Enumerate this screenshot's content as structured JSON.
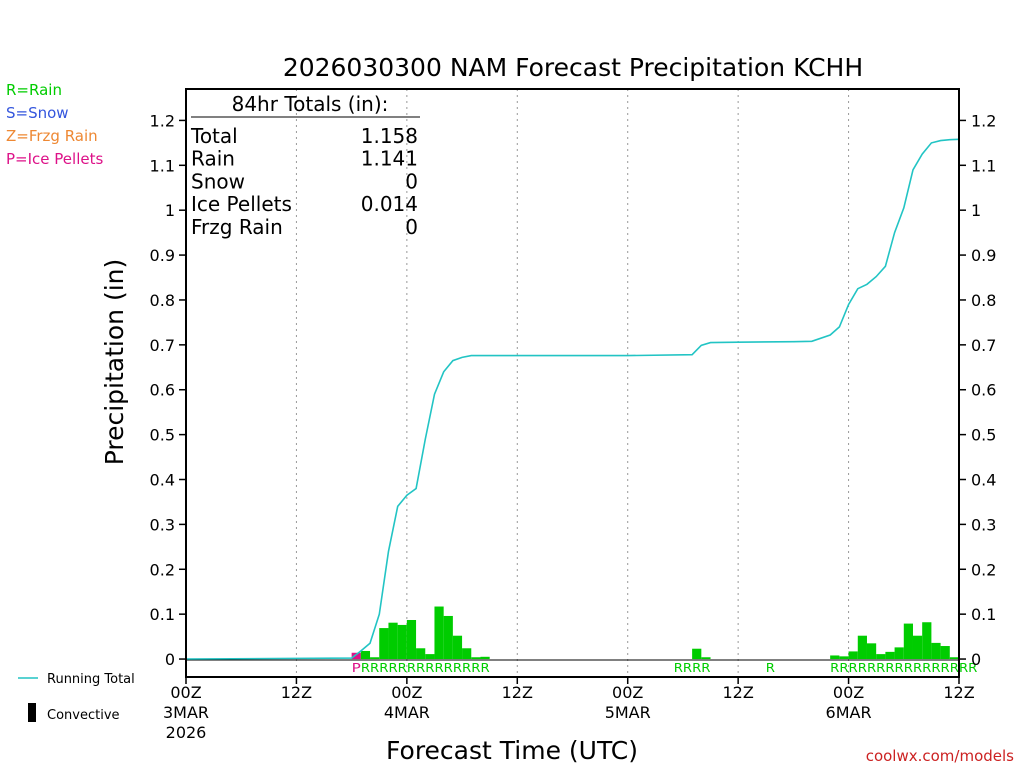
{
  "chart_data": {
    "type": "bar",
    "title": "2026030300 NAM Forecast Precipitation KCHH",
    "xlabel": "Forecast Time (UTC)",
    "ylabel": "Precipitation (in)",
    "ylim": [
      -0.04,
      1.27
    ],
    "yticks": [
      0,
      0.1,
      0.2,
      0.3,
      0.4,
      0.5,
      0.6,
      0.7,
      0.8,
      0.9,
      1,
      1.1,
      1.2
    ],
    "ytick_labels": [
      "0",
      "0.1",
      "0.2",
      "0.3",
      "0.4",
      "0.5",
      "0.6",
      "0.7",
      "0.8",
      "0.9",
      "1",
      "1.1",
      "1.2"
    ],
    "xlim_hours": [
      0,
      84
    ],
    "xticks": [
      {
        "hour": 0,
        "lines": [
          "00Z",
          "3MAR",
          "2026"
        ]
      },
      {
        "hour": 12,
        "lines": [
          "12Z"
        ]
      },
      {
        "hour": 24,
        "lines": [
          "00Z",
          "4MAR"
        ]
      },
      {
        "hour": 36,
        "lines": [
          "12Z"
        ]
      },
      {
        "hour": 48,
        "lines": [
          "00Z",
          "5MAR"
        ]
      },
      {
        "hour": 60,
        "lines": [
          "12Z"
        ]
      },
      {
        "hour": 72,
        "lines": [
          "00Z",
          "6MAR"
        ]
      },
      {
        "hour": 84,
        "lines": [
          "12Z"
        ]
      }
    ],
    "legend_types": [
      {
        "label": "R=Rain",
        "color": "#00cc00"
      },
      {
        "label": "S=Snow",
        "color": "#3355dd"
      },
      {
        "label": "Z=Frzg Rain",
        "color": "#ee8833"
      },
      {
        "label": "P=Ice Pellets",
        "color": "#dd1188"
      }
    ],
    "legend_series": [
      {
        "label": "Running Total",
        "color": "#22c4c4"
      },
      {
        "label": "Convective",
        "color": "#000000"
      }
    ],
    "totals": {
      "header": "84hr Totals (in):",
      "rows": [
        {
          "label": "Total",
          "value": "1.158"
        },
        {
          "label": "Rain",
          "value": "1.141"
        },
        {
          "label": "Snow",
          "value": "0"
        },
        {
          "label": "Ice Pellets",
          "value": "0.014"
        },
        {
          "label": "Frzg Rain",
          "value": "0"
        }
      ]
    },
    "bar_width_hours": 1,
    "bars": [
      {
        "hour": 18.5,
        "value": 0.014,
        "color": "#dd1188"
      },
      {
        "hour": 19.5,
        "value": 0.018,
        "color": "#00cc00"
      },
      {
        "hour": 20.5,
        "value": 0.004,
        "color": "#00cc00"
      },
      {
        "hour": 21.5,
        "value": 0.069,
        "color": "#00cc00"
      },
      {
        "hour": 22.5,
        "value": 0.081,
        "color": "#00cc00"
      },
      {
        "hour": 23.5,
        "value": 0.076,
        "color": "#00cc00"
      },
      {
        "hour": 24.5,
        "value": 0.087,
        "color": "#00cc00"
      },
      {
        "hour": 25.5,
        "value": 0.024,
        "color": "#00cc00"
      },
      {
        "hour": 26.5,
        "value": 0.011,
        "color": "#00cc00"
      },
      {
        "hour": 27.5,
        "value": 0.117,
        "color": "#00cc00"
      },
      {
        "hour": 28.5,
        "value": 0.096,
        "color": "#00cc00"
      },
      {
        "hour": 29.5,
        "value": 0.052,
        "color": "#00cc00"
      },
      {
        "hour": 30.5,
        "value": 0.024,
        "color": "#00cc00"
      },
      {
        "hour": 31.5,
        "value": 0.004,
        "color": "#00cc00"
      },
      {
        "hour": 32.5,
        "value": 0.005,
        "color": "#00cc00"
      },
      {
        "hour": 55.5,
        "value": 0.023,
        "color": "#00cc00"
      },
      {
        "hour": 56.5,
        "value": 0.004,
        "color": "#00cc00"
      },
      {
        "hour": 70.5,
        "value": 0.008,
        "color": "#00cc00"
      },
      {
        "hour": 71.5,
        "value": 0.006,
        "color": "#00cc00"
      },
      {
        "hour": 72.5,
        "value": 0.017,
        "color": "#00cc00"
      },
      {
        "hour": 73.5,
        "value": 0.052,
        "color": "#00cc00"
      },
      {
        "hour": 74.5,
        "value": 0.035,
        "color": "#00cc00"
      },
      {
        "hour": 75.5,
        "value": 0.011,
        "color": "#00cc00"
      },
      {
        "hour": 76.5,
        "value": 0.016,
        "color": "#00cc00"
      },
      {
        "hour": 77.5,
        "value": 0.026,
        "color": "#00cc00"
      },
      {
        "hour": 78.5,
        "value": 0.079,
        "color": "#00cc00"
      },
      {
        "hour": 79.5,
        "value": 0.052,
        "color": "#00cc00"
      },
      {
        "hour": 80.5,
        "value": 0.082,
        "color": "#00cc00"
      },
      {
        "hour": 81.5,
        "value": 0.036,
        "color": "#00cc00"
      },
      {
        "hour": 82.5,
        "value": 0.029,
        "color": "#00cc00"
      },
      {
        "hour": 83.5,
        "value": 0.004,
        "color": "#00cc00"
      }
    ],
    "running_total": {
      "name": "Running Total",
      "x": [
        0,
        18,
        19,
        20,
        21,
        22,
        23,
        24,
        25,
        26,
        27,
        28,
        29,
        30,
        31,
        32,
        33,
        36,
        48,
        55,
        56,
        57,
        60,
        66,
        68,
        70,
        71,
        72,
        73,
        74,
        75,
        76,
        77,
        78,
        79,
        80,
        81,
        82,
        83,
        84
      ],
      "y": [
        0,
        0.002,
        0.018,
        0.035,
        0.1,
        0.24,
        0.34,
        0.365,
        0.38,
        0.49,
        0.59,
        0.64,
        0.665,
        0.672,
        0.676,
        0.676,
        0.676,
        0.676,
        0.676,
        0.678,
        0.699,
        0.705,
        0.706,
        0.707,
        0.708,
        0.722,
        0.74,
        0.79,
        0.825,
        0.835,
        0.852,
        0.875,
        0.95,
        1.005,
        1.09,
        1.125,
        1.15,
        1.155,
        1.157,
        1.158
      ]
    },
    "type_markers": [
      {
        "hour": 18.5,
        "text": "P",
        "color": "#dd1188"
      },
      {
        "hour": 19.5,
        "text": "RRRRRRRRRRRRRR",
        "color": "#00cc00"
      },
      {
        "hour": 53.5,
        "text": "RRRR",
        "color": "#00cc00"
      },
      {
        "hour": 63.5,
        "text": "R",
        "color": "#00cc00"
      },
      {
        "hour": 70.5,
        "text": "RRRRRRRRRRRRRRRR",
        "color": "#00cc00"
      }
    ],
    "grid": "vertical dotted"
  },
  "credit": "coolwx.com/models"
}
